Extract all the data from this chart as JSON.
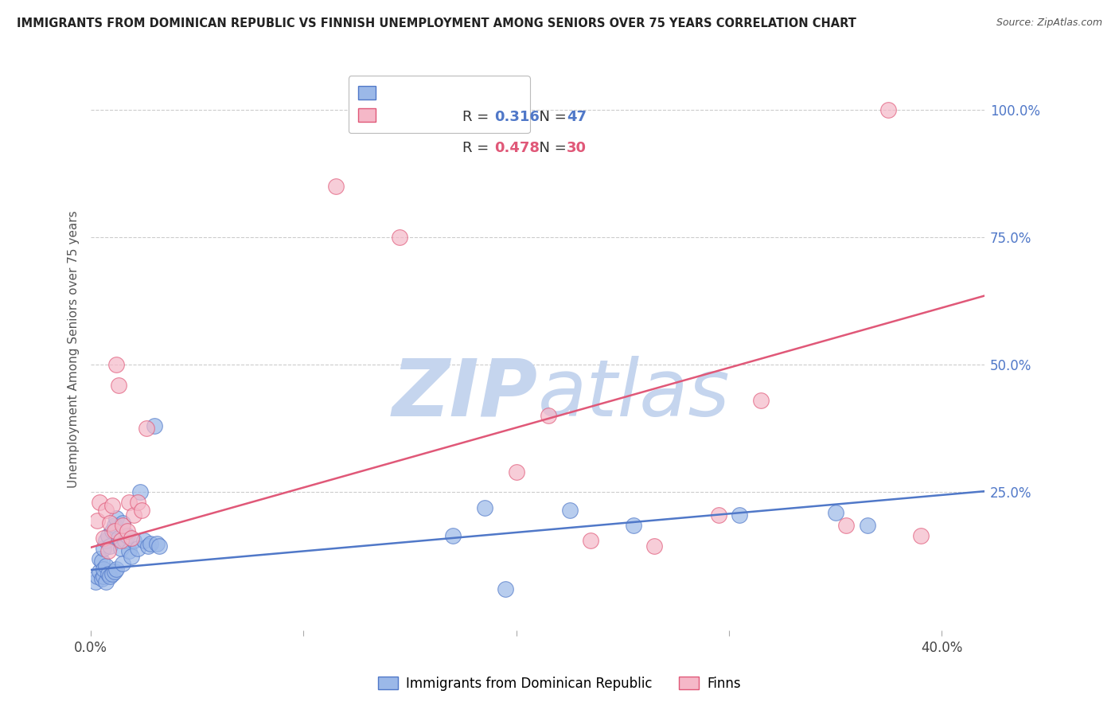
{
  "title": "IMMIGRANTS FROM DOMINICAN REPUBLIC VS FINNISH UNEMPLOYMENT AMONG SENIORS OVER 75 YEARS CORRELATION CHART",
  "source": "Source: ZipAtlas.com",
  "ylabel": "Unemployment Among Seniors over 75 years",
  "right_yticks": [
    "100.0%",
    "75.0%",
    "50.0%",
    "25.0%"
  ],
  "right_ytick_vals": [
    1.0,
    0.75,
    0.5,
    0.25
  ],
  "xlim": [
    0.0,
    0.42
  ],
  "ylim": [
    -0.02,
    1.08
  ],
  "blue_R": "0.316",
  "blue_N": "47",
  "pink_R": "0.478",
  "pink_N": "30",
  "blue_color": "#9BB8E8",
  "pink_color": "#F5B8C8",
  "blue_line_color": "#5078C8",
  "pink_line_color": "#E05878",
  "blue_scatter_x": [
    0.002,
    0.003,
    0.004,
    0.004,
    0.005,
    0.005,
    0.006,
    0.006,
    0.006,
    0.007,
    0.007,
    0.007,
    0.008,
    0.008,
    0.009,
    0.009,
    0.01,
    0.01,
    0.011,
    0.011,
    0.012,
    0.012,
    0.013,
    0.014,
    0.015,
    0.015,
    0.016,
    0.017,
    0.018,
    0.019,
    0.02,
    0.022,
    0.023,
    0.025,
    0.027,
    0.028,
    0.03,
    0.031,
    0.032,
    0.17,
    0.185,
    0.195,
    0.225,
    0.255,
    0.305,
    0.35,
    0.365
  ],
  "blue_scatter_y": [
    0.075,
    0.085,
    0.095,
    0.12,
    0.08,
    0.115,
    0.085,
    0.1,
    0.14,
    0.075,
    0.105,
    0.155,
    0.09,
    0.165,
    0.085,
    0.145,
    0.09,
    0.175,
    0.095,
    0.185,
    0.1,
    0.2,
    0.16,
    0.14,
    0.11,
    0.19,
    0.155,
    0.165,
    0.135,
    0.125,
    0.155,
    0.14,
    0.25,
    0.155,
    0.145,
    0.15,
    0.38,
    0.15,
    0.145,
    0.165,
    0.22,
    0.06,
    0.215,
    0.185,
    0.205,
    0.21,
    0.185
  ],
  "pink_scatter_x": [
    0.003,
    0.004,
    0.006,
    0.007,
    0.008,
    0.009,
    0.01,
    0.011,
    0.012,
    0.013,
    0.014,
    0.015,
    0.017,
    0.018,
    0.019,
    0.02,
    0.022,
    0.024,
    0.026,
    0.115,
    0.145,
    0.2,
    0.215,
    0.235,
    0.265,
    0.295,
    0.315,
    0.355,
    0.375,
    0.39
  ],
  "pink_scatter_y": [
    0.195,
    0.23,
    0.16,
    0.215,
    0.135,
    0.19,
    0.225,
    0.175,
    0.5,
    0.46,
    0.155,
    0.185,
    0.175,
    0.23,
    0.16,
    0.205,
    0.23,
    0.215,
    0.375,
    0.85,
    0.75,
    0.29,
    0.4,
    0.155,
    0.145,
    0.205,
    0.43,
    0.185,
    1.0,
    0.165
  ],
  "blue_trend_x": [
    0.0,
    0.42
  ],
  "blue_trend_y": [
    0.098,
    0.252
  ],
  "pink_trend_x": [
    0.0,
    0.42
  ],
  "pink_trend_y": [
    0.142,
    0.635
  ],
  "watermark_zip": "ZIP",
  "watermark_atlas": "atlas",
  "watermark_color": "#C5D5EE",
  "legend_blue_label": "Immigrants from Dominican Republic",
  "legend_pink_label": "Finns",
  "background_color": "#FFFFFF",
  "grid_color": "#CCCCCC"
}
